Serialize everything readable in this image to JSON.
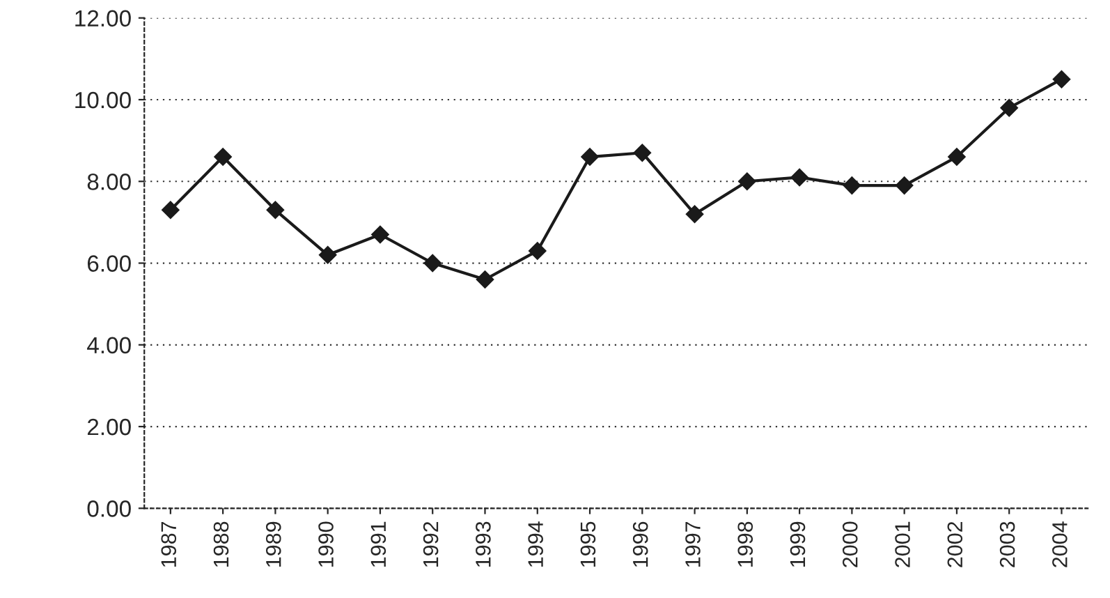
{
  "chart_data": {
    "type": "line",
    "categories": [
      "1987",
      "1988",
      "1989",
      "1990",
      "1991",
      "1992",
      "1993",
      "1994",
      "1995",
      "1996",
      "1997",
      "1998",
      "1999",
      "2000",
      "2001",
      "2002",
      "2003",
      "2004"
    ],
    "series": [
      {
        "color": "#1a1a1a",
        "values": [
          7.3,
          8.6,
          7.3,
          6.2,
          6.7,
          6.0,
          5.6,
          6.3,
          8.6,
          8.7,
          7.2,
          8.0,
          8.1,
          7.9,
          7.9,
          8.6,
          9.8,
          10.5
        ]
      }
    ],
    "ylim": [
      0,
      12
    ],
    "yticks": [
      {
        "value": 0,
        "label": "0.00"
      },
      {
        "value": 2,
        "label": "2.00"
      },
      {
        "value": 4,
        "label": "4.00"
      },
      {
        "value": 6,
        "label": "6.00"
      },
      {
        "value": 8,
        "label": "8.00"
      },
      {
        "value": 10,
        "label": "10.00"
      },
      {
        "value": 12,
        "label": "12.00"
      }
    ],
    "grid": "y",
    "marker": "diamond",
    "line_style": "solid"
  }
}
